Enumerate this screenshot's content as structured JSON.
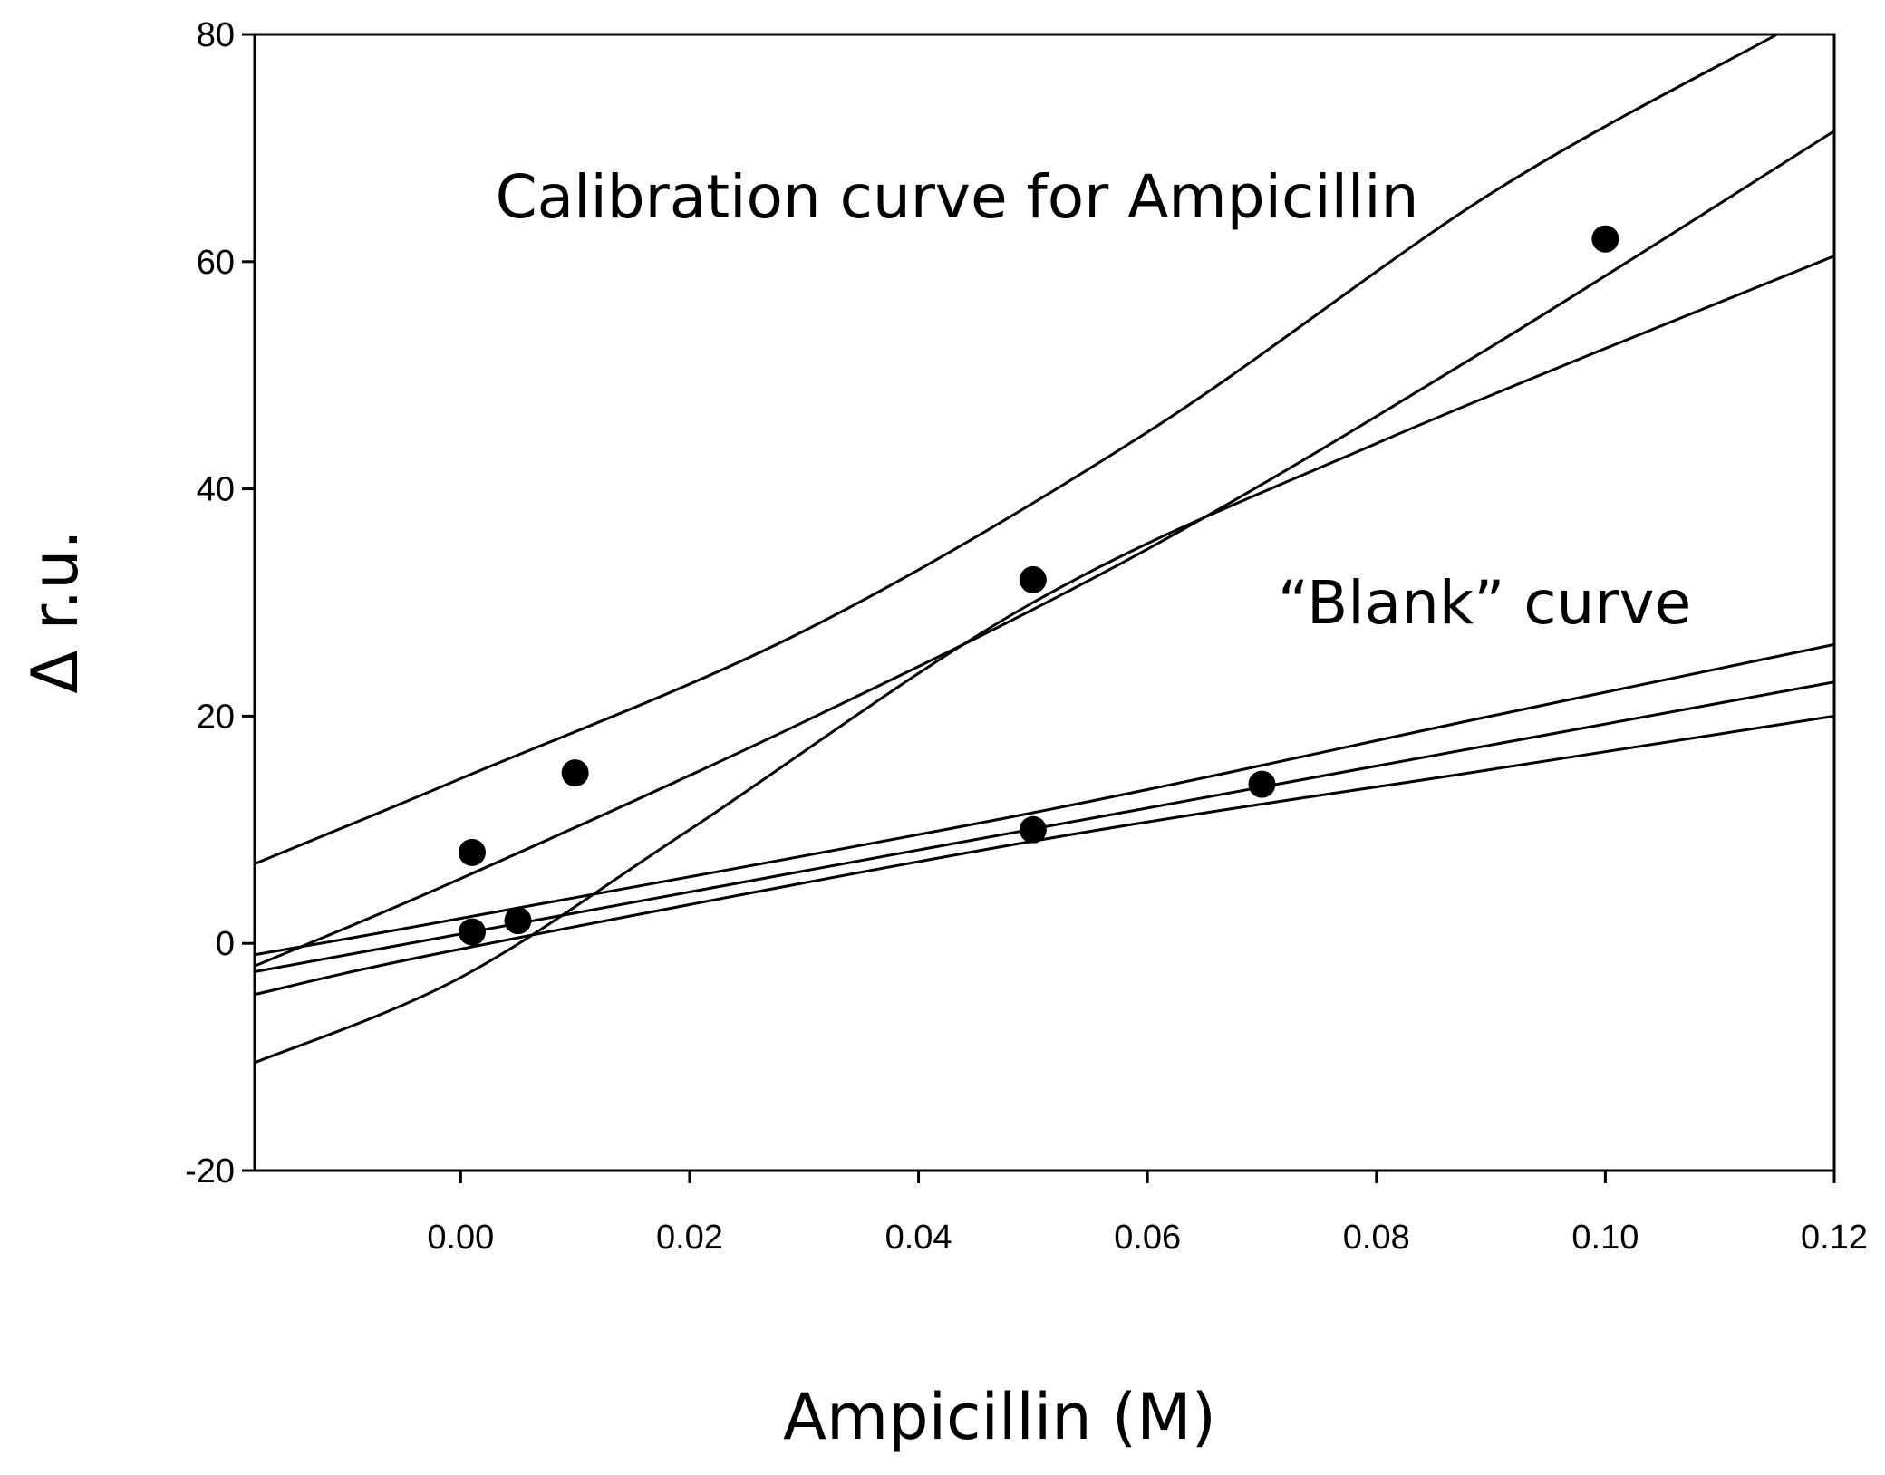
{
  "chart_data": {
    "type": "scatter",
    "xlabel": "Ampicillin (M)",
    "ylabel": "Δ r.u.",
    "xlim": [
      -0.018,
      0.12
    ],
    "ylim": [
      -20,
      80
    ],
    "x_ticks": [
      "0.00",
      "0.02",
      "0.04",
      "0.06",
      "0.08",
      "0.10",
      "0.12"
    ],
    "y_ticks": [
      "-20",
      "0",
      "20",
      "40",
      "60",
      "80"
    ],
    "grid": false,
    "legend": "none",
    "annotations": [
      {
        "text": "Calibration curve for Ampicillin",
        "x": 0.043,
        "y": 66
      },
      {
        "text": "“Blank” curve",
        "x": 0.089,
        "y": 30
      }
    ],
    "series": [
      {
        "points": [
          {
            "x": 0.001,
            "y": 8
          },
          {
            "x": 0.01,
            "y": 15
          },
          {
            "x": 0.05,
            "y": 32
          },
          {
            "x": 0.1,
            "y": 62
          }
        ],
        "fit": {
          "x": [
            -0.018,
            0.0,
            0.03,
            0.06,
            0.09,
            0.12
          ],
          "y": [
            -2,
            5.7,
            19.5,
            34.7,
            52.5,
            71.5
          ]
        },
        "upper_band": {
          "x": [
            -0.018,
            0.0,
            0.03,
            0.06,
            0.09,
            0.115
          ],
          "y": [
            7,
            14.5,
            27.5,
            45,
            66,
            80
          ]
        },
        "lower_band": {
          "x": [
            -0.018,
            0.0,
            0.02,
            0.05,
            0.08,
            0.12
          ],
          "y": [
            -10.5,
            -3,
            10,
            30,
            44,
            60.5
          ]
        }
      },
      {
        "points": [
          {
            "x": 0.001,
            "y": 1
          },
          {
            "x": 0.005,
            "y": 2
          },
          {
            "x": 0.05,
            "y": 10
          },
          {
            "x": 0.07,
            "y": 14
          }
        ],
        "fit": {
          "x": [
            -0.018,
            0.12
          ],
          "y": [
            -2.5,
            23
          ]
        },
        "upper_band": {
          "x": [
            -0.018,
            0.0,
            0.05,
            0.09,
            0.12
          ],
          "y": [
            -1,
            2.2,
            11.5,
            20,
            26.3
          ]
        },
        "lower_band": {
          "x": [
            -0.018,
            0.0,
            0.05,
            0.09,
            0.12
          ],
          "y": [
            -4.5,
            -0.5,
            9,
            15.3,
            20
          ]
        }
      }
    ]
  }
}
